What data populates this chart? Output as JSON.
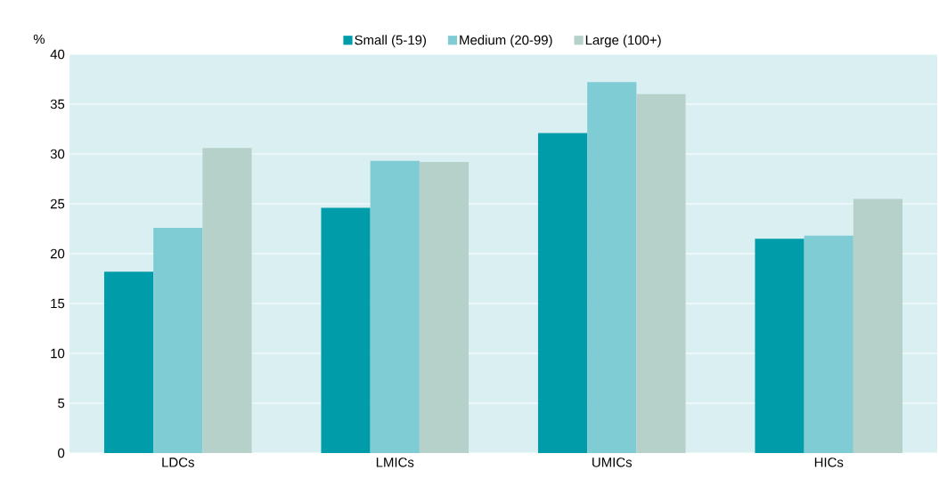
{
  "chart_data": {
    "type": "bar",
    "ylabel": "%",
    "categories": [
      "LDCs",
      "LMICs",
      "UMICs",
      "HICs"
    ],
    "series": [
      {
        "name": "Small (5-19)",
        "color": "#009ca9",
        "values": [
          18.2,
          24.6,
          32.1,
          21.5
        ]
      },
      {
        "name": "Medium (20-99)",
        "color": "#7fccd4",
        "values": [
          22.6,
          29.3,
          37.2,
          21.8
        ]
      },
      {
        "name": "Large (100+)",
        "color": "#b5d1c9",
        "values": [
          30.6,
          29.2,
          36.0,
          25.5
        ]
      }
    ],
    "ylim": [
      0,
      40
    ],
    "yticks": [
      0,
      5,
      10,
      15,
      20,
      25,
      30,
      35,
      40
    ],
    "grid": "y",
    "legend": "top"
  }
}
